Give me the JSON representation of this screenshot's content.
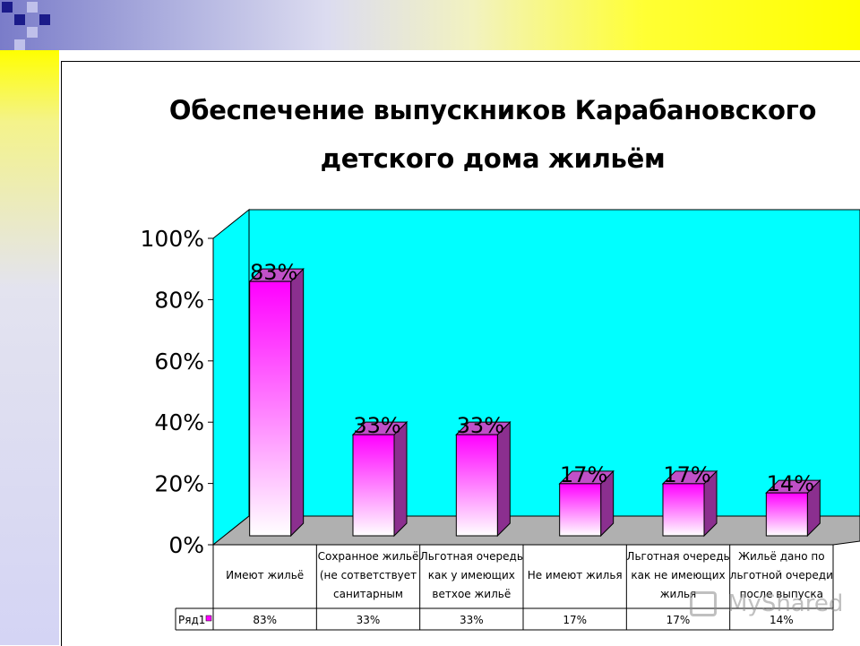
{
  "slide": {
    "title_line1": "Обеспечение выпускников Карабановского",
    "title_line2": "детского дома жильём",
    "watermark": "MyShared"
  },
  "chart_data": {
    "type": "bar",
    "title": "Обеспечение выпускников Карабановского детского дома жильём",
    "categories": [
      [
        "Имеют жильё"
      ],
      [
        "Сохранное жильё",
        "(не сответствует",
        "санитарным"
      ],
      [
        "Льготная очередь",
        "как у имеющих",
        "ветхое жильё"
      ],
      [
        "Не имеют жилья"
      ],
      [
        "Льготная очередь",
        "как не имеющих",
        "жилья"
      ],
      [
        "Жильё дано по",
        "льготной очереди",
        "после выпуска"
      ]
    ],
    "series": [
      {
        "name": "Ряд1",
        "values": [
          83,
          33,
          33,
          17,
          17,
          14
        ]
      }
    ],
    "data_labels": [
      "83%",
      "33%",
      "33%",
      "17%",
      "17%",
      "14%"
    ],
    "yticks": [
      "0%",
      "20%",
      "40%",
      "60%",
      "80%",
      "100%"
    ],
    "ylim": [
      0,
      100
    ],
    "data_table": true,
    "colors": {
      "wall": "#00ffff",
      "floor": "#b0b0b0",
      "bar_top": "#ff00ff",
      "bar_bottom": "#ffffff",
      "bar_side": "#8b2f8f"
    }
  }
}
